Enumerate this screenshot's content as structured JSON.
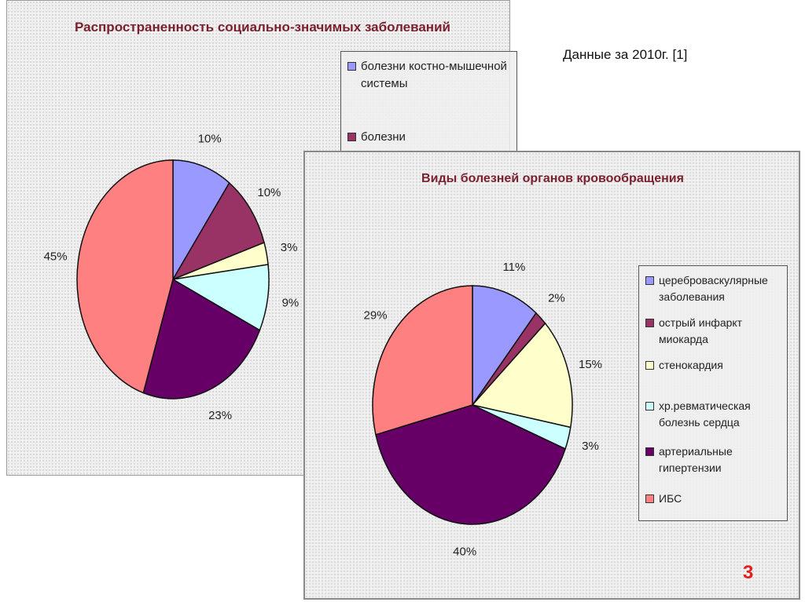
{
  "note": "Данные за 2010г.  [1]",
  "page_number": "3",
  "chart_data": [
    {
      "type": "pie",
      "title": "Распространенность социально-значимых заболеваний",
      "legend_visible": [
        {
          "label": "болезни костно-мышечной системы",
          "color": "#9999ff"
        },
        {
          "label": "болезни",
          "color": "#993366"
        }
      ],
      "slices": [
        {
          "value": 10,
          "label": "10%",
          "color": "#9999ff"
        },
        {
          "value": 10,
          "label": "10%",
          "color": "#993366"
        },
        {
          "value": 3,
          "label": "3%",
          "color": "#ffffcc"
        },
        {
          "value": 9,
          "label": "9%",
          "color": "#ccffff"
        },
        {
          "value": 23,
          "label": "23%",
          "color": "#660066"
        },
        {
          "value": 45,
          "label": "45%",
          "color": "#ff8080"
        }
      ],
      "legend_placement": "top-right"
    },
    {
      "type": "pie",
      "title": "Виды болезней органов кровообращения",
      "slices": [
        {
          "name": "цереброваскулярные заболевания",
          "value": 11,
          "label": "11%",
          "color": "#9999ff"
        },
        {
          "name": "острый инфаркт миокарда",
          "value": 2,
          "label": "2%",
          "color": "#993366"
        },
        {
          "name": "стенокардия",
          "value": 15,
          "label": "15%",
          "color": "#ffffcc"
        },
        {
          "name": "хр.ревматическая болезнь сердца",
          "value": 3,
          "label": "3%",
          "color": "#ccffff"
        },
        {
          "name": "артериальные гипертензии",
          "value": 40,
          "label": "40%",
          "color": "#660066"
        },
        {
          "name": "ИБС",
          "value": 29,
          "label": "29%",
          "color": "#ff8080"
        }
      ],
      "legend_placement": "right"
    }
  ]
}
